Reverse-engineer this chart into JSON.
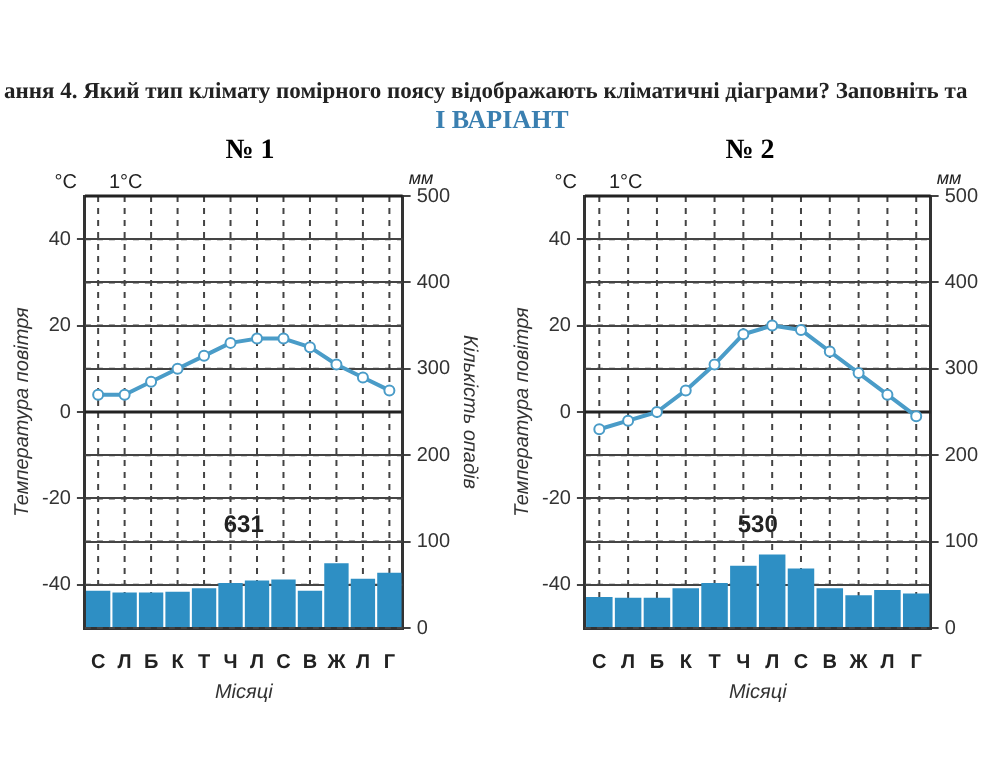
{
  "chart_data": [
    {
      "type": "bar",
      "title": "№ 1",
      "categories": [
        "С",
        "Л",
        "Б",
        "К",
        "Т",
        "Ч",
        "Л",
        "С",
        "В",
        "Ж",
        "Л",
        "Г"
      ],
      "series": [
        {
          "axis": "y2",
          "color": "#2e8fc4",
          "values": [
            43,
            41,
            41,
            42,
            46,
            52,
            55,
            56,
            43,
            75,
            57,
            64
          ]
        },
        {
          "type": "line",
          "axis": "y",
          "color": "#4a9cc8",
          "marker": "circle",
          "line_style": "solid",
          "values": [
            4,
            4,
            7,
            10,
            13,
            16,
            17,
            17,
            15,
            11,
            8,
            5
          ]
        }
      ],
      "ylim": [
        -50,
        50
      ],
      "yticks": [
        -40,
        -20,
        0,
        20,
        40
      ],
      "y2lim": [
        0,
        500
      ],
      "y2ticks": [
        0,
        100,
        200,
        300,
        400,
        500
      ],
      "xlabel": "Місяці",
      "ylabel": "Температура повітря",
      "y2label": "Кількість опадів",
      "grid": true,
      "ref_lines": [
        {
          "axis": "y",
          "value": 0
        }
      ],
      "annotations": [
        "°C",
        "мм",
        "1°C",
        "631",
        "ання 4. Який тип клімату помірного поясу відображають кліматичні діаграми? Заповніть та",
        "I ВАРІАНТ"
      ]
    },
    {
      "type": "bar",
      "title": "№ 2",
      "categories": [
        "С",
        "Л",
        "Б",
        "К",
        "Т",
        "Ч",
        "Л",
        "С",
        "В",
        "Ж",
        "Л",
        "Г"
      ],
      "series": [
        {
          "axis": "y2",
          "color": "#2e8fc4",
          "values": [
            36,
            35,
            35,
            46,
            52,
            72,
            85,
            69,
            46,
            38,
            44,
            40
          ]
        },
        {
          "type": "line",
          "axis": "y",
          "color": "#4a9cc8",
          "marker": "circle",
          "line_style": "solid",
          "values": [
            -4,
            -2,
            0,
            5,
            11,
            18,
            20,
            19,
            14,
            9,
            4,
            -1
          ]
        }
      ],
      "ylim": [
        -50,
        50
      ],
      "yticks": [
        -40,
        -20,
        0,
        20,
        40
      ],
      "y2lim": [
        0,
        500
      ],
      "y2ticks": [
        0,
        100,
        200,
        300,
        400,
        500
      ],
      "xlabel": "Місяці",
      "ylabel": "Температура повітря",
      "grid": true,
      "ref_lines": [
        {
          "axis": "y",
          "value": 0
        }
      ],
      "annotations": [
        "°C",
        "мм",
        "1°C",
        "530"
      ]
    }
  ]
}
